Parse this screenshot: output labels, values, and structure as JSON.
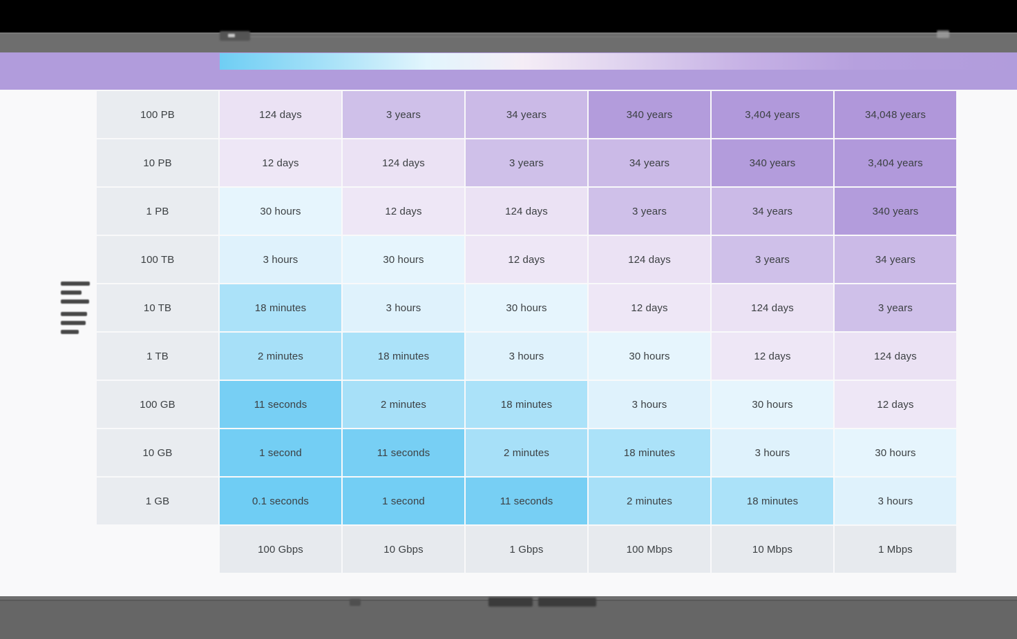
{
  "theme": {
    "page_bg": "#F9F9FA",
    "black_bar": "#000000",
    "top_bar_gray": "#6E6E6E",
    "bottom_bar_gray": "#666666",
    "accent_purple": "#B19CDC",
    "cell_text": "#3C4043",
    "label_cell_bg": "#E9ECF0",
    "axis_cell_bg": "#E7EAEE"
  },
  "header_gradient_stops": [
    "#6FCEF4 0%",
    "#A9E2F8 14%",
    "#E2F5FD 26%",
    "#F5EDF6 38%",
    "#DDD0EE 52%",
    "#C6B1E5 66%",
    "#B6A0DE 80%",
    "#B19CDC 100%"
  ],
  "chart_data": {
    "type": "heatmap",
    "title": "",
    "xlabel": "",
    "ylabel": "",
    "x_axis_label_redacted": true,
    "y_axis_label_redacted": true,
    "legend_position": "none",
    "grid": false,
    "x_categories": [
      "100 Gbps",
      "10 Gbps",
      "1 Gbps",
      "100 Mbps",
      "10 Mbps",
      "1 Mbps"
    ],
    "y_categories": [
      "100 PB",
      "10 PB",
      "1 PB",
      "100 TB",
      "10 TB",
      "1 TB",
      "100 GB",
      "10 GB",
      "1 GB"
    ],
    "rows": [
      [
        "124 days",
        "3 years",
        "34 years",
        "340 years",
        "3,404 years",
        "34,048 years"
      ],
      [
        "12 days",
        "124 days",
        "3 years",
        "34 years",
        "340 years",
        "3,404 years"
      ],
      [
        "30 hours",
        "12 days",
        "124 days",
        "3 years",
        "34 years",
        "340 years"
      ],
      [
        "3 hours",
        "30 hours",
        "12 days",
        "124 days",
        "3 years",
        "34 years"
      ],
      [
        "18 minutes",
        "3 hours",
        "30 hours",
        "12 days",
        "124 days",
        "3 years"
      ],
      [
        "2 minutes",
        "18 minutes",
        "3 hours",
        "30 hours",
        "12 days",
        "124 days"
      ],
      [
        "11 seconds",
        "2 minutes",
        "18 minutes",
        "3 hours",
        "30 hours",
        "12 days"
      ],
      [
        "1 second",
        "11 seconds",
        "2 minutes",
        "18 minutes",
        "3 hours",
        "30 hours"
      ],
      [
        "0.1 seconds",
        "1 second",
        "11 seconds",
        "2 minutes",
        "18 minutes",
        "3 hours"
      ]
    ],
    "value_colors": {
      "0.1 seconds": "#6FCDF4",
      "1 second": "#73CEF4",
      "11 seconds": "#77CFF4",
      "2 minutes": "#A7E0F8",
      "18 minutes": "#ABE2F9",
      "3 hours": "#DFF2FC",
      "30 hours": "#E6F5FD",
      "12 days": "#EEE7F6",
      "124 days": "#EBE2F4",
      "3 years": "#CFC0E9",
      "34 years": "#CBBAE7",
      "340 years": "#B39CDC",
      "3,404 years": "#B199DB",
      "34,048 years": "#B097DA"
    }
  }
}
